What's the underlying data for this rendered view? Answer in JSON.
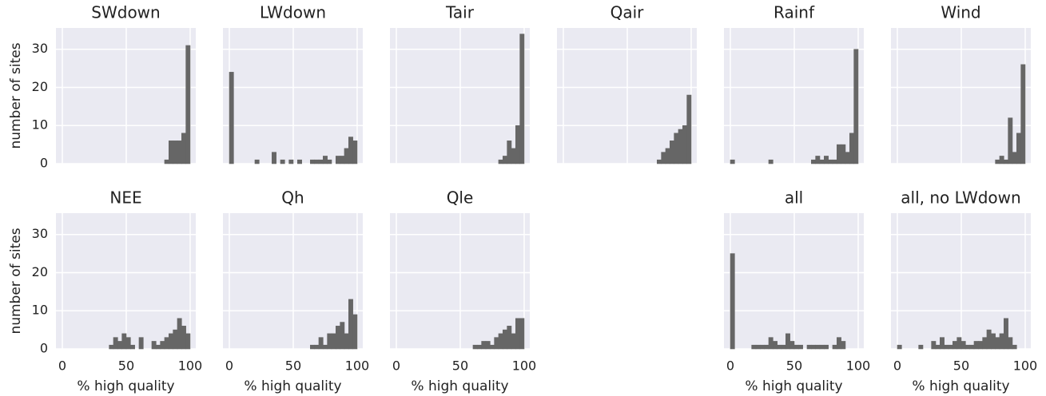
{
  "chart_data": [
    {
      "type": "histogram",
      "title": "SWdown",
      "ylabel": "number of sites",
      "bins": [
        0,
        3.33,
        6.67,
        10,
        13.33,
        16.67,
        20,
        23.33,
        26.67,
        30,
        33.33,
        36.67,
        40,
        43.33,
        46.67,
        50,
        53.33,
        56.67,
        60,
        63.33,
        66.67,
        70,
        73.33,
        76.67,
        80,
        83.33,
        86.67,
        90,
        93.33,
        96.67,
        100
      ],
      "values": [
        0,
        0,
        0,
        0,
        0,
        0,
        0,
        0,
        0,
        0,
        0,
        0,
        0,
        0,
        0,
        0,
        0,
        0,
        0,
        0,
        0,
        0,
        0,
        0,
        1,
        6,
        6,
        6,
        8,
        31
      ],
      "color": "#666666",
      "xlim": [
        -5,
        104.4
      ],
      "ylim": [
        0,
        35.6
      ],
      "xticks": [
        0,
        50,
        100
      ],
      "yticks": [
        0,
        10,
        20,
        30
      ],
      "grid": true
    },
    {
      "type": "histogram",
      "title": "LWdown",
      "bins": [
        0,
        3.33,
        6.67,
        10,
        13.33,
        16.67,
        20,
        23.33,
        26.67,
        30,
        33.33,
        36.67,
        40,
        43.33,
        46.67,
        50,
        53.33,
        56.67,
        60,
        63.33,
        66.67,
        70,
        73.33,
        76.67,
        80,
        83.33,
        86.67,
        90,
        93.33,
        96.67,
        100
      ],
      "values": [
        24,
        0,
        0,
        0,
        0,
        0,
        1,
        0,
        0,
        0,
        3,
        0,
        1,
        0,
        1,
        0,
        1,
        0,
        0,
        1,
        1,
        1,
        2,
        1,
        0,
        2,
        2,
        4,
        7,
        6
      ],
      "color": "#666666",
      "xlim": [
        -5,
        104.4
      ],
      "ylim": [
        0,
        35.6
      ],
      "xticks": [
        0,
        50,
        100
      ],
      "yticks": [
        0,
        10,
        20,
        30
      ],
      "grid": true
    },
    {
      "type": "histogram",
      "title": "Tair",
      "bins": [
        0,
        3.33,
        6.67,
        10,
        13.33,
        16.67,
        20,
        23.33,
        26.67,
        30,
        33.33,
        36.67,
        40,
        43.33,
        46.67,
        50,
        53.33,
        56.67,
        60,
        63.33,
        66.67,
        70,
        73.33,
        76.67,
        80,
        83.33,
        86.67,
        90,
        93.33,
        96.67,
        100
      ],
      "values": [
        0,
        0,
        0,
        0,
        0,
        0,
        0,
        0,
        0,
        0,
        0,
        0,
        0,
        0,
        0,
        0,
        0,
        0,
        0,
        0,
        0,
        0,
        0,
        0,
        1,
        2,
        6,
        4,
        10,
        34
      ],
      "color": "#666666",
      "xlim": [
        -5,
        104.4
      ],
      "ylim": [
        0,
        35.6
      ],
      "xticks": [
        0,
        50,
        100
      ],
      "yticks": [
        0,
        10,
        20,
        30
      ],
      "grid": true
    },
    {
      "type": "histogram",
      "title": "Qair",
      "bins": [
        0,
        3.33,
        6.67,
        10,
        13.33,
        16.67,
        20,
        23.33,
        26.67,
        30,
        33.33,
        36.67,
        40,
        43.33,
        46.67,
        50,
        53.33,
        56.67,
        60,
        63.33,
        66.67,
        70,
        73.33,
        76.67,
        80,
        83.33,
        86.67,
        90,
        93.33,
        96.67,
        100
      ],
      "values": [
        0,
        0,
        0,
        0,
        0,
        0,
        0,
        0,
        0,
        0,
        0,
        0,
        0,
        0,
        0,
        0,
        0,
        0,
        0,
        0,
        0,
        0,
        1,
        3,
        4,
        6,
        8,
        9,
        10,
        18
      ],
      "color": "#666666",
      "xlim": [
        -5,
        104.4
      ],
      "ylim": [
        0,
        35.6
      ],
      "xticks": [
        0,
        50,
        100
      ],
      "yticks": [
        0,
        10,
        20,
        30
      ],
      "grid": true
    },
    {
      "type": "histogram",
      "title": "Rainf",
      "bins": [
        0,
        3.33,
        6.67,
        10,
        13.33,
        16.67,
        20,
        23.33,
        26.67,
        30,
        33.33,
        36.67,
        40,
        43.33,
        46.67,
        50,
        53.33,
        56.67,
        60,
        63.33,
        66.67,
        70,
        73.33,
        76.67,
        80,
        83.33,
        86.67,
        90,
        93.33,
        96.67,
        100
      ],
      "values": [
        1,
        0,
        0,
        0,
        0,
        0,
        0,
        0,
        0,
        1,
        0,
        0,
        0,
        0,
        0,
        0,
        0,
        0,
        0,
        1,
        2,
        1,
        2,
        1,
        1,
        5,
        5,
        3,
        8,
        30
      ],
      "color": "#666666",
      "xlim": [
        -5,
        104.4
      ],
      "ylim": [
        0,
        35.6
      ],
      "xticks": [
        0,
        50,
        100
      ],
      "yticks": [
        0,
        10,
        20,
        30
      ],
      "grid": true
    },
    {
      "type": "histogram",
      "title": "Wind",
      "bins": [
        0,
        3.33,
        6.67,
        10,
        13.33,
        16.67,
        20,
        23.33,
        26.67,
        30,
        33.33,
        36.67,
        40,
        43.33,
        46.67,
        50,
        53.33,
        56.67,
        60,
        63.33,
        66.67,
        70,
        73.33,
        76.67,
        80,
        83.33,
        86.67,
        90,
        93.33,
        96.67,
        100
      ],
      "values": [
        0,
        0,
        0,
        0,
        0,
        0,
        0,
        0,
        0,
        0,
        0,
        0,
        0,
        0,
        0,
        0,
        0,
        0,
        0,
        0,
        0,
        0,
        0,
        1,
        2,
        1,
        12,
        3,
        8,
        26
      ],
      "color": "#666666",
      "xlim": [
        -5,
        104.4
      ],
      "ylim": [
        0,
        35.6
      ],
      "xticks": [
        0,
        50,
        100
      ],
      "yticks": [
        0,
        10,
        20,
        30
      ],
      "grid": true
    },
    {
      "type": "histogram",
      "title": "NEE",
      "ylabel": "number of sites",
      "xlabel": "% high quality",
      "bins": [
        0,
        3.33,
        6.67,
        10,
        13.33,
        16.67,
        20,
        23.33,
        26.67,
        30,
        33.33,
        36.67,
        40,
        43.33,
        46.67,
        50,
        53.33,
        56.67,
        60,
        63.33,
        66.67,
        70,
        73.33,
        76.67,
        80,
        83.33,
        86.67,
        90,
        93.33,
        96.67,
        100
      ],
      "values": [
        0,
        0,
        0,
        0,
        0,
        0,
        0,
        0,
        0,
        0,
        0,
        1,
        3,
        2,
        4,
        3,
        1,
        0,
        3,
        0,
        0,
        2,
        1,
        2,
        3,
        4,
        5,
        8,
        6,
        4
      ],
      "color": "#666666",
      "xlim": [
        -5,
        104.4
      ],
      "ylim": [
        0,
        35.6
      ],
      "xticks": [
        0,
        50,
        100
      ],
      "yticks": [
        0,
        10,
        20,
        30
      ],
      "grid": true
    },
    {
      "type": "histogram",
      "title": "Qh",
      "xlabel": "% high quality",
      "bins": [
        0,
        3.33,
        6.67,
        10,
        13.33,
        16.67,
        20,
        23.33,
        26.67,
        30,
        33.33,
        36.67,
        40,
        43.33,
        46.67,
        50,
        53.33,
        56.67,
        60,
        63.33,
        66.67,
        70,
        73.33,
        76.67,
        80,
        83.33,
        86.67,
        90,
        93.33,
        96.67,
        100
      ],
      "values": [
        0,
        0,
        0,
        0,
        0,
        0,
        0,
        0,
        0,
        0,
        0,
        0,
        0,
        0,
        0,
        0,
        0,
        0,
        0,
        1,
        1,
        3,
        1,
        4,
        4,
        6,
        7,
        4,
        13,
        9
      ],
      "color": "#666666",
      "xlim": [
        -5,
        104.4
      ],
      "ylim": [
        0,
        35.6
      ],
      "xticks": [
        0,
        50,
        100
      ],
      "yticks": [
        0,
        10,
        20,
        30
      ],
      "grid": true
    },
    {
      "type": "histogram",
      "title": "Qle",
      "xlabel": "% high quality",
      "bins": [
        0,
        3.33,
        6.67,
        10,
        13.33,
        16.67,
        20,
        23.33,
        26.67,
        30,
        33.33,
        36.67,
        40,
        43.33,
        46.67,
        50,
        53.33,
        56.67,
        60,
        63.33,
        66.67,
        70,
        73.33,
        76.67,
        80,
        83.33,
        86.67,
        90,
        93.33,
        96.67,
        100
      ],
      "values": [
        0,
        0,
        0,
        0,
        0,
        0,
        0,
        0,
        0,
        0,
        0,
        0,
        0,
        0,
        0,
        0,
        0,
        0,
        1,
        1,
        2,
        2,
        1,
        3,
        4,
        5,
        6,
        4,
        8,
        8
      ],
      "color": "#666666",
      "xlim": [
        -5,
        104.4
      ],
      "ylim": [
        0,
        35.6
      ],
      "xticks": [
        0,
        50,
        100
      ],
      "yticks": [
        0,
        10,
        20,
        30
      ],
      "grid": true
    },
    {
      "type": "histogram",
      "title": "all",
      "xlabel": "% high quality",
      "bins": [
        0,
        3.33,
        6.67,
        10,
        13.33,
        16.67,
        20,
        23.33,
        26.67,
        30,
        33.33,
        36.67,
        40,
        43.33,
        46.67,
        50,
        53.33,
        56.67,
        60,
        63.33,
        66.67,
        70,
        73.33,
        76.67,
        80,
        83.33,
        86.67,
        90,
        93.33,
        96.67,
        100
      ],
      "values": [
        25,
        0,
        0,
        0,
        0,
        1,
        1,
        1,
        1,
        3,
        2,
        1,
        1,
        4,
        2,
        1,
        1,
        0,
        1,
        1,
        1,
        1,
        1,
        0,
        1,
        3,
        2,
        0,
        0,
        0
      ],
      "color": "#666666",
      "xlim": [
        -5,
        104.4
      ],
      "ylim": [
        0,
        35.6
      ],
      "xticks": [
        0,
        50,
        100
      ],
      "yticks": [
        0,
        10,
        20,
        30
      ],
      "grid": true
    },
    {
      "type": "histogram",
      "title": "all, no LWdown",
      "xlabel": "% high quality",
      "bins": [
        0,
        3.33,
        6.67,
        10,
        13.33,
        16.67,
        20,
        23.33,
        26.67,
        30,
        33.33,
        36.67,
        40,
        43.33,
        46.67,
        50,
        53.33,
        56.67,
        60,
        63.33,
        66.67,
        70,
        73.33,
        76.67,
        80,
        83.33,
        86.67,
        90,
        93.33,
        96.67,
        100
      ],
      "values": [
        1,
        0,
        0,
        0,
        0,
        1,
        0,
        0,
        2,
        1,
        3,
        1,
        1,
        2,
        3,
        2,
        1,
        1,
        2,
        2,
        3,
        5,
        4,
        3,
        4,
        8,
        3,
        1,
        0,
        0
      ],
      "color": "#666666",
      "xlim": [
        -5,
        104.4
      ],
      "ylim": [
        0,
        35.6
      ],
      "xticks": [
        0,
        50,
        100
      ],
      "yticks": [
        0,
        10,
        20,
        30
      ],
      "grid": true
    }
  ]
}
